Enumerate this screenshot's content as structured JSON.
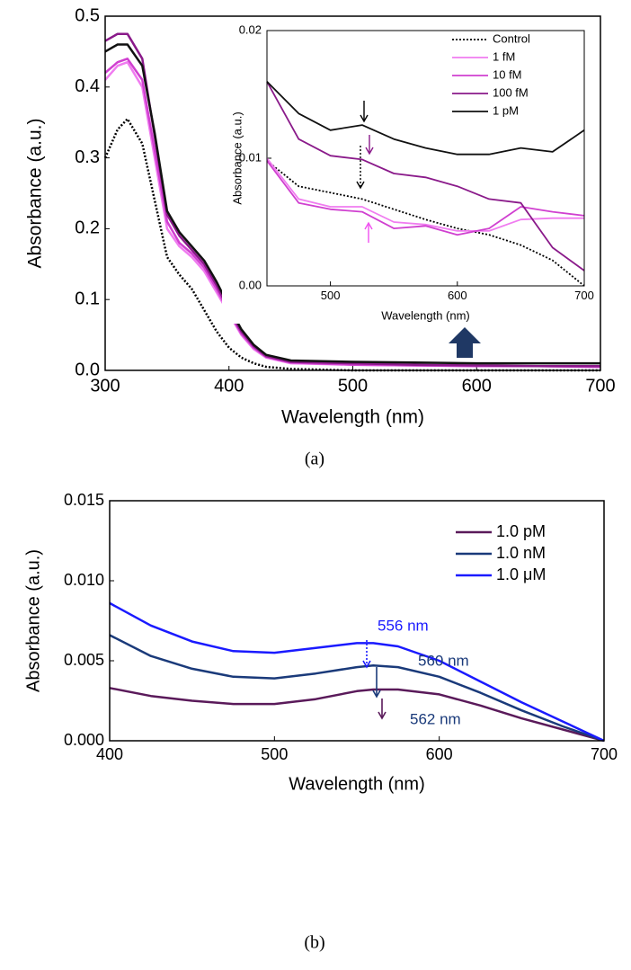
{
  "chart_data": [
    {
      "type": "line",
      "caption": "(a)",
      "x_label": "Wavelength (nm)",
      "y_label": "Absorbance (a.u.)",
      "x": [
        300,
        310,
        318,
        330,
        340,
        350,
        360,
        370,
        380,
        390,
        400,
        410,
        420,
        430,
        450,
        500,
        550,
        600,
        650,
        700
      ],
      "xlim": [
        300,
        700
      ],
      "xticks": [
        300,
        400,
        500,
        600,
        700
      ],
      "ylim": [
        0,
        0.5
      ],
      "yticks": [
        {
          "value": 0,
          "label": "0.0"
        },
        0.1,
        0.2,
        0.3,
        0.4,
        0.5
      ],
      "series": [
        {
          "color": "#000000",
          "dash": true,
          "values": [
            0.3,
            0.34,
            0.355,
            0.32,
            0.24,
            0.16,
            0.135,
            0.115,
            0.085,
            0.055,
            0.032,
            0.018,
            0.01,
            0.005,
            0.002,
            0.0,
            0.0,
            0.0,
            0.0,
            0.0
          ]
        },
        {
          "color": "#f07cf0",
          "values": [
            0.41,
            0.43,
            0.435,
            0.4,
            0.3,
            0.2,
            0.175,
            0.16,
            0.14,
            0.11,
            0.08,
            0.05,
            0.03,
            0.018,
            0.01,
            0.008,
            0.007,
            0.006,
            0.006,
            0.005
          ]
        },
        {
          "color": "#d040d0",
          "values": [
            0.42,
            0.435,
            0.44,
            0.41,
            0.31,
            0.21,
            0.18,
            0.165,
            0.145,
            0.115,
            0.082,
            0.052,
            0.032,
            0.019,
            0.011,
            0.008,
            0.007,
            0.006,
            0.006,
            0.005
          ]
        },
        {
          "color": "#8a1a8a",
          "values": [
            0.465,
            0.475,
            0.475,
            0.44,
            0.33,
            0.22,
            0.19,
            0.17,
            0.15,
            0.12,
            0.085,
            0.055,
            0.034,
            0.02,
            0.012,
            0.01,
            0.008,
            0.007,
            0.006,
            0.006
          ]
        },
        {
          "color": "#111111",
          "values": [
            0.45,
            0.46,
            0.46,
            0.43,
            0.335,
            0.225,
            0.195,
            0.175,
            0.155,
            0.125,
            0.09,
            0.058,
            0.036,
            0.022,
            0.014,
            0.012,
            0.011,
            0.01,
            0.01,
            0.01
          ]
        }
      ]
    },
    {
      "type": "line",
      "x_label": "Wavelength (nm)",
      "y_label": "Absorbance (a.u.)",
      "x": [
        450,
        475,
        500,
        525,
        550,
        575,
        600,
        625,
        650,
        675,
        700
      ],
      "xlim": [
        450,
        700
      ],
      "xticks": [
        500,
        600,
        700
      ],
      "ylim": [
        0,
        0.02
      ],
      "yticks": [
        {
          "value": 0,
          "label": "0.00"
        },
        {
          "value": 0.01,
          "label": "0.01"
        },
        {
          "value": 0.02,
          "label": "0.02"
        }
      ],
      "legend": "upper right",
      "series": [
        {
          "name": "Control",
          "color": "#000000",
          "dash": true,
          "values": [
            0.0098,
            0.0078,
            0.0073,
            0.0068,
            0.006,
            0.0052,
            0.0045,
            0.004,
            0.0032,
            0.002,
            0.0
          ]
        },
        {
          "name": "1 fM",
          "color": "#f07cf0",
          "values": [
            0.01,
            0.0068,
            0.0062,
            0.0062,
            0.005,
            0.0048,
            0.0043,
            0.0043,
            0.0052,
            0.0053,
            0.0053
          ]
        },
        {
          "name": "10 fM",
          "color": "#d040d0",
          "values": [
            0.0098,
            0.0065,
            0.006,
            0.0058,
            0.0045,
            0.0047,
            0.004,
            0.0045,
            0.0062,
            0.0058,
            0.0055
          ]
        },
        {
          "name": "100 fM",
          "color": "#8a1a8a",
          "values": [
            0.016,
            0.0115,
            0.0102,
            0.0099,
            0.0088,
            0.0085,
            0.0078,
            0.0068,
            0.0065,
            0.003,
            0.0012
          ]
        },
        {
          "name": "1 pM",
          "color": "#111111",
          "values": [
            0.016,
            0.0135,
            0.0122,
            0.0126,
            0.0115,
            0.0108,
            0.0103,
            0.0103,
            0.0108,
            0.0105,
            0.0122
          ]
        }
      ]
    },
    {
      "type": "line",
      "caption": "(b)",
      "x_label": "Wavelength (nm)",
      "y_label": "Absorbance (a.u.)",
      "x": [
        400,
        425,
        450,
        475,
        500,
        525,
        550,
        560,
        575,
        600,
        625,
        650,
        675,
        700
      ],
      "xlim": [
        400,
        700
      ],
      "xticks": [
        400,
        500,
        600,
        700
      ],
      "ylim": [
        0,
        0.015
      ],
      "yticks": [
        {
          "value": 0,
          "label": "0.000"
        },
        {
          "value": 0.005,
          "label": "0.005"
        },
        {
          "value": 0.01,
          "label": "0.010"
        },
        {
          "value": 0.015,
          "label": "0.015"
        }
      ],
      "legend": "upper right",
      "annotations": [
        "556 nm",
        "560 nm",
        "562 nm"
      ],
      "series": [
        {
          "name": "1.0 pM",
          "color": "#5a1a5a",
          "values": [
            0.0033,
            0.0028,
            0.0025,
            0.0023,
            0.0023,
            0.0026,
            0.0031,
            0.0032,
            0.0032,
            0.0029,
            0.0022,
            0.0014,
            0.0007,
            0.0
          ]
        },
        {
          "name": "1.0 nM",
          "color": "#1a3a7a",
          "values": [
            0.0066,
            0.0053,
            0.0045,
            0.004,
            0.0039,
            0.0042,
            0.0046,
            0.0047,
            0.0046,
            0.004,
            0.003,
            0.0019,
            0.0009,
            0.0
          ]
        },
        {
          "name": "1.0 μM",
          "color": "#1a1aff",
          "values": [
            0.0086,
            0.0072,
            0.0062,
            0.0056,
            0.0055,
            0.0058,
            0.0061,
            0.0061,
            0.0059,
            0.005,
            0.0037,
            0.0024,
            0.0012,
            0.0
          ]
        }
      ]
    }
  ]
}
